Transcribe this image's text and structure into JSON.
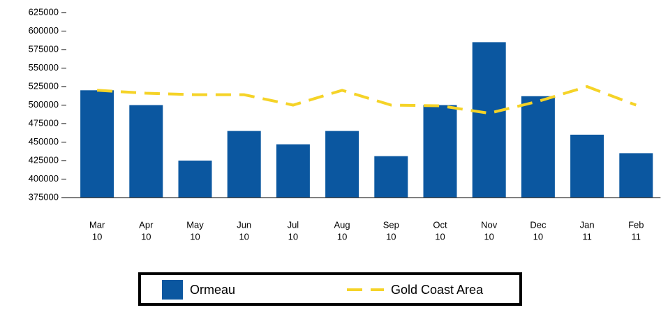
{
  "chart_data": {
    "type": "bar_line",
    "categories": [
      [
        "Mar",
        "10"
      ],
      [
        "Apr",
        "10"
      ],
      [
        "May",
        "10"
      ],
      [
        "Jun",
        "10"
      ],
      [
        "Jul",
        "10"
      ],
      [
        "Aug",
        "10"
      ],
      [
        "Sep",
        "10"
      ],
      [
        "Oct",
        "10"
      ],
      [
        "Nov",
        "10"
      ],
      [
        "Dec",
        "10"
      ],
      [
        "Jan",
        "11"
      ],
      [
        "Feb",
        "11"
      ]
    ],
    "series": [
      {
        "name": "Ormeau",
        "type": "bar",
        "color": "#0b57a0",
        "values": [
          520000,
          500000,
          425000,
          465000,
          447000,
          465000,
          431000,
          500000,
          585000,
          512000,
          460000,
          435000
        ]
      },
      {
        "name": "Gold Coast Area",
        "type": "line",
        "color": "#f5d327",
        "values": [
          520000,
          516000,
          514000,
          514000,
          500000,
          520000,
          500000,
          499000,
          489000,
          505000,
          525000,
          500000
        ]
      }
    ],
    "ylim": [
      375000,
      625000
    ],
    "yticks": [
      375000,
      400000,
      425000,
      450000,
      475000,
      500000,
      525000,
      550000,
      575000,
      600000,
      625000
    ],
    "legend": "bottom"
  }
}
